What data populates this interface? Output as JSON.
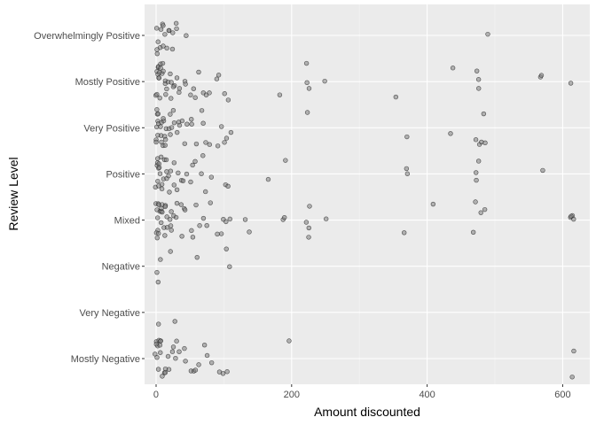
{
  "chart_data": {
    "type": "scatter",
    "jitter": true,
    "title": "",
    "xlabel": "Amount discounted",
    "ylabel": "Review Level",
    "xlim": [
      -17,
      640
    ],
    "x_ticks": [
      0,
      200,
      400,
      600
    ],
    "x_tick_labels": [
      "0",
      "200",
      "400",
      "600"
    ],
    "categories": [
      "Mostly Negative",
      "Very Negative",
      "Negative",
      "Mixed",
      "Positive",
      "Very Positive",
      "Mostly Positive",
      "Overwhelmingly Positive"
    ],
    "grid": true,
    "legend": "none",
    "colors": {
      "panel": "#EBEBEB",
      "grid_major": "#FFFFFF",
      "point_fill": "#7F7F7F",
      "point_stroke": "#1A1A1A"
    },
    "groups": [
      {
        "category": "Overwhelmingly Positive",
        "x": [
          0,
          1,
          2,
          3,
          5,
          6,
          8,
          10,
          12,
          14,
          15,
          18,
          20,
          22,
          25,
          28,
          32,
          45,
          487
        ]
      },
      {
        "category": "Mostly Positive",
        "x": [
          0,
          0,
          1,
          1,
          2,
          3,
          3,
          4,
          5,
          6,
          7,
          8,
          9,
          10,
          11,
          12,
          14,
          15,
          16,
          18,
          20,
          22,
          24,
          25,
          28,
          30,
          33,
          35,
          40,
          45,
          50,
          55,
          60,
          65,
          70,
          75,
          80,
          90,
          95,
          100,
          105,
          182,
          223,
          224,
          225,
          248,
          353,
          437,
          473,
          475,
          477,
          568,
          570,
          614
        ]
      },
      {
        "category": "Very Positive",
        "x": [
          0,
          0,
          1,
          1,
          2,
          2,
          3,
          4,
          5,
          6,
          7,
          8,
          9,
          10,
          11,
          12,
          13,
          14,
          15,
          16,
          18,
          20,
          22,
          24,
          25,
          27,
          30,
          33,
          35,
          38,
          40,
          45,
          50,
          55,
          60,
          65,
          70,
          75,
          80,
          90,
          95,
          100,
          105,
          110,
          223,
          368,
          437,
          473,
          476,
          480,
          485,
          487
        ]
      },
      {
        "category": "Positive",
        "x": [
          0,
          0,
          1,
          1,
          2,
          3,
          4,
          5,
          6,
          7,
          8,
          9,
          10,
          11,
          12,
          14,
          15,
          16,
          18,
          20,
          22,
          25,
          28,
          30,
          33,
          35,
          40,
          45,
          50,
          55,
          60,
          65,
          70,
          75,
          80,
          100,
          105,
          163,
          190,
          368,
          370,
          470,
          475,
          478,
          568
        ]
      },
      {
        "category": "Mixed",
        "x": [
          0,
          0,
          1,
          1,
          2,
          2,
          3,
          4,
          5,
          6,
          7,
          8,
          9,
          10,
          11,
          12,
          13,
          14,
          15,
          16,
          18,
          20,
          22,
          24,
          25,
          27,
          30,
          33,
          35,
          38,
          40,
          45,
          50,
          55,
          60,
          65,
          70,
          75,
          80,
          90,
          95,
          100,
          105,
          110,
          130,
          138,
          185,
          190,
          220,
          223,
          224,
          225,
          252,
          368,
          410,
          470,
          473,
          478,
          483,
          612,
          613,
          614,
          615
        ]
      },
      {
        "category": "Negative",
        "x": [
          0,
          2,
          5,
          20,
          60,
          104,
          106
        ]
      },
      {
        "category": "Very Negative",
        "x": [
          2,
          28
        ]
      },
      {
        "category": "Mostly Negative",
        "x": [
          0,
          0,
          1,
          1,
          2,
          3,
          4,
          5,
          6,
          7,
          8,
          10,
          12,
          14,
          16,
          18,
          20,
          22,
          25,
          28,
          30,
          35,
          40,
          45,
          50,
          55,
          60,
          65,
          70,
          75,
          80,
          95,
          100,
          104,
          195,
          612,
          615
        ]
      }
    ]
  }
}
